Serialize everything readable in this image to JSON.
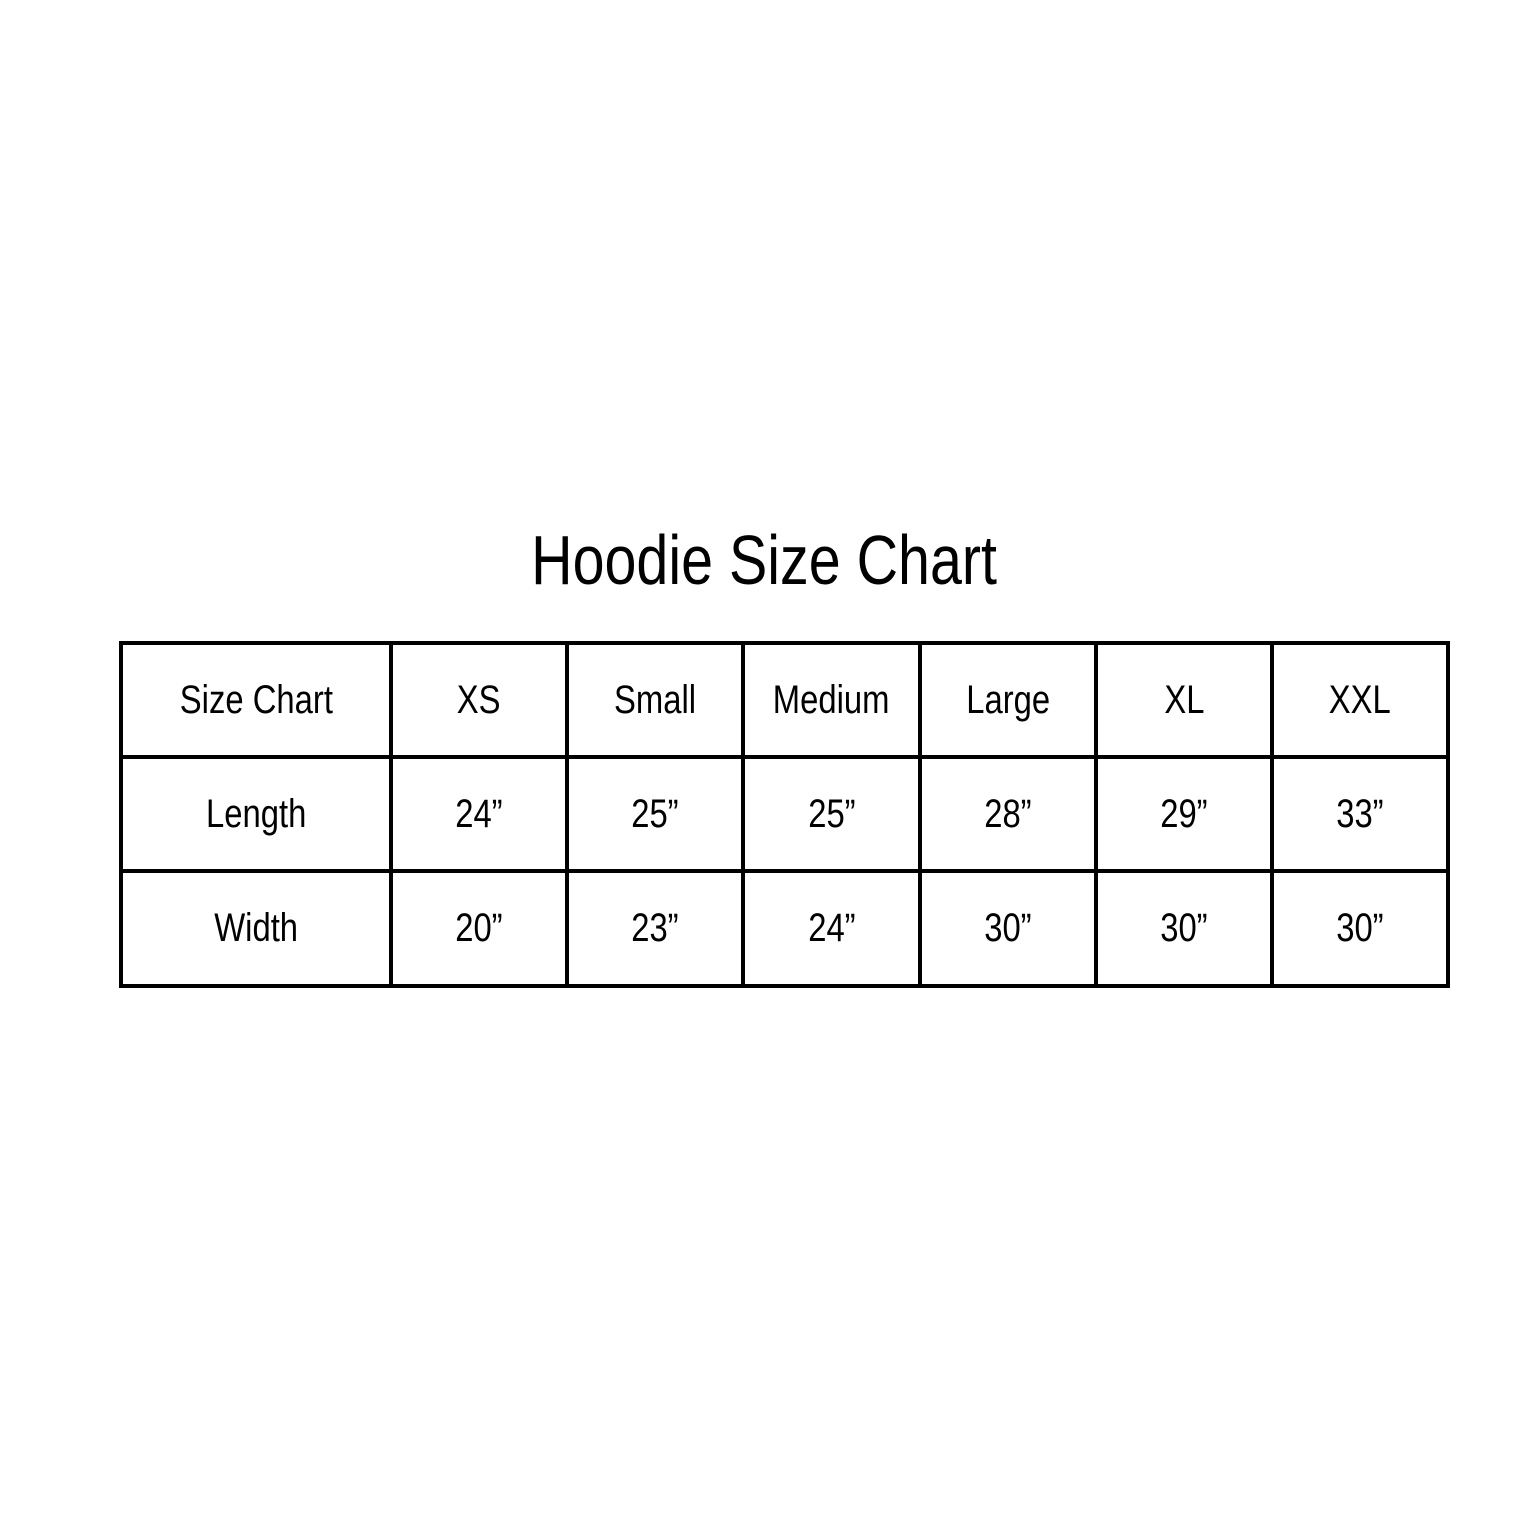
{
  "title": "Hoodie Size Chart",
  "table": {
    "headers": [
      "Size Chart",
      "XS",
      "Small",
      "Medium",
      "Large",
      "XL",
      "XXL"
    ],
    "rows": [
      [
        "Length",
        "24”",
        "25”",
        "25”",
        "28”",
        "29”",
        "33”"
      ],
      [
        "Width",
        "20”",
        "23”",
        "24”",
        "30”",
        "30”",
        "30”"
      ]
    ]
  }
}
